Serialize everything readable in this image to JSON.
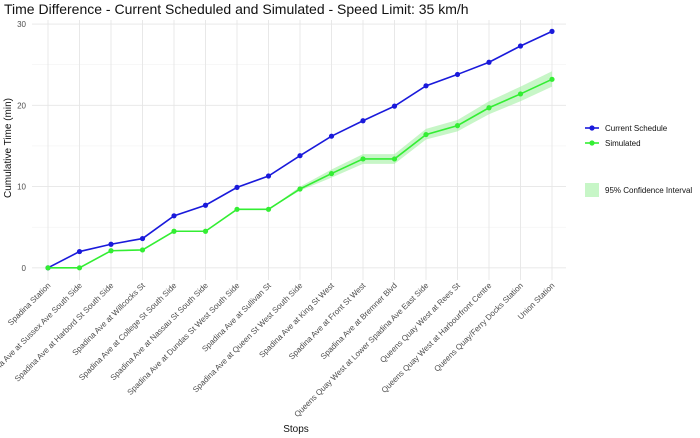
{
  "chart_data": {
    "type": "line",
    "title": "Time Difference - Current Scheduled and Simulated - Speed Limit: 35 km/h",
    "xlabel": "Stops",
    "ylabel": "Cumulative Time (min)",
    "ylim": [
      -1.5,
      30.5
    ],
    "yticks": [
      0,
      10,
      20,
      30
    ],
    "grid": true,
    "legend_position": "right",
    "categories": [
      "Spadina Station",
      "Spadina Ave at Sussex Ave South Side",
      "Spadina Ave at Harbord St South Side",
      "Spadina Ave at Willcocks St",
      "Spadina Ave at College St South Side",
      "Spadina Ave at Nassau St South Side",
      "Spadina Ave at Dundas St West South Side",
      "Spadina Ave at Sullivan St",
      "Spadina Ave at Queen St West South Side",
      "Spadina Ave at King St West",
      "Spadina Ave at Front St West",
      "Spadina Ave at Bremner Blvd",
      "Queens Quay West at Lower Spadina Ave East Side",
      "Queens Quay West at Rees St",
      "Queens Quay West at Harbourfront Centre",
      "Queens Quay/Ferry Docks Station",
      "Union Station"
    ],
    "series": [
      {
        "name": "Current Schedule",
        "color": "#1a1adb",
        "values": [
          0,
          2,
          2.9,
          3.6,
          6.4,
          7.7,
          9.9,
          11.3,
          13.8,
          16.2,
          18.1,
          19.9,
          22.4,
          23.8,
          25.3,
          27.3,
          29.1
        ]
      },
      {
        "name": "Simulated",
        "color": "#33ee33",
        "values": [
          0,
          0,
          2.1,
          2.2,
          4.5,
          4.5,
          7.2,
          7.2,
          9.7,
          11.6,
          13.4,
          13.4,
          16.4,
          17.5,
          19.7,
          21.4,
          23.2
        ],
        "ci_lower": [
          0,
          0,
          2.1,
          2.2,
          4.5,
          4.5,
          7.2,
          7.2,
          9.5,
          11.1,
          12.8,
          12.8,
          15.8,
          16.8,
          18.9,
          20.5,
          22.3
        ],
        "ci_upper": [
          0,
          0,
          2.1,
          2.2,
          4.5,
          4.5,
          7.2,
          7.2,
          10.0,
          12.1,
          14.0,
          14.0,
          17.1,
          18.2,
          20.5,
          22.3,
          24.2
        ]
      }
    ],
    "ci_label": "95% Confidence Interval",
    "ci_color": "#99ee99"
  }
}
